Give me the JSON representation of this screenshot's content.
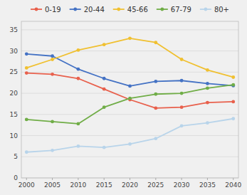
{
  "chart_data": {
    "type": "line",
    "x": [
      2000,
      2005,
      2010,
      2015,
      2020,
      2025,
      2030,
      2035,
      2040
    ],
    "series": [
      {
        "name": "0-19",
        "color": "#e8604c",
        "values": [
          24.8,
          24.5,
          23.5,
          21.0,
          18.5,
          16.5,
          16.7,
          17.8,
          18.0
        ]
      },
      {
        "name": "20-44",
        "color": "#4472c4",
        "values": [
          29.3,
          28.8,
          25.7,
          23.5,
          21.7,
          22.8,
          23.0,
          22.3,
          21.8
        ]
      },
      {
        "name": "45-66",
        "color": "#f0c030",
        "values": [
          26.0,
          28.0,
          30.2,
          31.5,
          33.0,
          32.0,
          28.0,
          25.5,
          23.8
        ]
      },
      {
        "name": "67-79",
        "color": "#70ad47",
        "values": [
          13.8,
          13.3,
          12.8,
          16.7,
          18.8,
          19.8,
          20.0,
          21.2,
          22.0
        ]
      },
      {
        "name": "80+",
        "color": "#b8d4ea",
        "values": [
          6.1,
          6.5,
          7.5,
          7.2,
          8.0,
          9.3,
          12.3,
          13.0,
          14.0
        ]
      }
    ],
    "xlim": [
      1999,
      2041
    ],
    "xticks": [
      2000,
      2005,
      2010,
      2015,
      2020,
      2025,
      2030,
      2035,
      2040
    ],
    "ylim": [
      0,
      37
    ],
    "yticks": [
      0,
      5,
      10,
      15,
      20,
      25,
      30,
      35
    ],
    "grid": true,
    "legend": "top",
    "marker": "circle"
  }
}
